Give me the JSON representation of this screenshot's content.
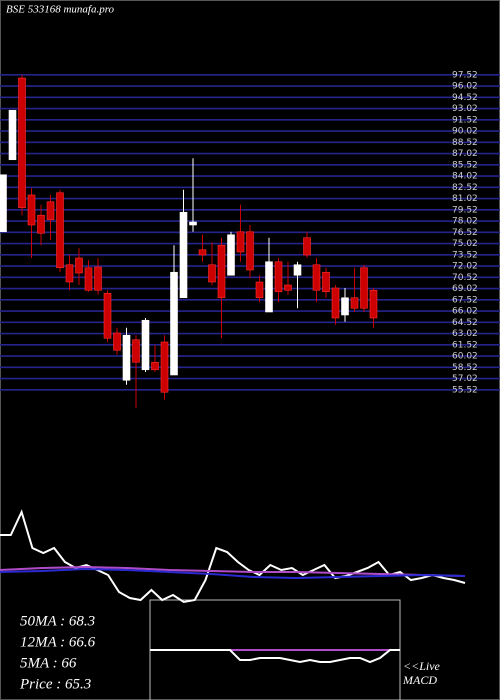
{
  "chart_data": [
    {
      "type": "candlestick",
      "title": "BSE 533168  munafa.pro",
      "ylim": [
        53.5,
        97.5
      ],
      "yticks": [
        97.52,
        96.02,
        94.52,
        93.02,
        91.52,
        90.02,
        88.52,
        87.02,
        85.52,
        84.02,
        82.52,
        81.02,
        79.52,
        78.02,
        76.52,
        75.02,
        73.52,
        72.02,
        70.52,
        69.02,
        67.52,
        66.02,
        64.52,
        63.02,
        61.52,
        60.02,
        58.52,
        57.02,
        55.52
      ],
      "grid": true,
      "up_color": "#ffffff",
      "down_color": "#cc0000",
      "grid_color": "#24248c",
      "ohlc": [
        [
          76.6,
          84.2,
          76.6,
          84.2
        ],
        [
          86.2,
          92.8,
          86.2,
          92.8
        ],
        [
          97.1,
          97.5,
          78.8,
          79.8
        ],
        [
          81.5,
          82.4,
          73.1,
          77.5
        ],
        [
          78.8,
          80.2,
          74.8,
          76.4
        ],
        [
          80.6,
          81.5,
          75.5,
          78.2
        ],
        [
          81.8,
          82.2,
          71.2,
          71.8
        ],
        [
          72.2,
          73.5,
          68.8,
          69.9
        ],
        [
          73.1,
          74.4,
          69.5,
          71.1
        ],
        [
          71.8,
          72.8,
          68.6,
          68.8
        ],
        [
          71.9,
          73.1,
          68.2,
          68.8
        ],
        [
          68.4,
          68.8,
          61.9,
          62.4
        ],
        [
          63.1,
          63.8,
          60.2,
          60.8
        ],
        [
          56.8,
          63.8,
          56.2,
          62.8
        ],
        [
          62.2,
          62.8,
          53.1,
          59.2
        ],
        [
          58.2,
          65.1,
          57.9,
          64.8
        ],
        [
          59.2,
          61.5,
          57.9,
          58.2
        ],
        [
          61.9,
          62.8,
          54.2,
          55.2
        ],
        [
          57.5,
          74.8,
          57.5,
          71.2
        ],
        [
          67.8,
          82.2,
          67.8,
          79.2
        ],
        [
          77.5,
          86.4,
          76.6,
          77.9
        ],
        [
          74.2,
          76.2,
          72.6,
          73.5
        ],
        [
          72.2,
          75.2,
          69.5,
          69.9
        ],
        [
          74.8,
          75.8,
          62.4,
          67.8
        ],
        [
          70.8,
          76.6,
          70.8,
          76.2
        ],
        [
          76.6,
          80.2,
          72.6,
          73.9
        ],
        [
          76.6,
          77.5,
          70.4,
          71.5
        ],
        [
          69.9,
          70.8,
          67.2,
          67.8
        ],
        [
          65.9,
          75.8,
          65.9,
          72.6
        ],
        [
          72.6,
          73.1,
          67.2,
          68.6
        ],
        [
          69.5,
          72.6,
          68.2,
          68.8
        ],
        [
          70.8,
          72.6,
          66.4,
          72.2
        ],
        [
          75.8,
          76.6,
          73.1,
          73.5
        ],
        [
          72.2,
          73.1,
          67.2,
          68.8
        ],
        [
          71.2,
          71.8,
          67.8,
          68.6
        ],
        [
          69.1,
          69.5,
          64.2,
          65.1
        ],
        [
          65.5,
          69.1,
          64.6,
          67.8
        ],
        [
          67.8,
          71.8,
          65.9,
          66.4
        ],
        [
          71.8,
          72.2,
          65.9,
          66.4
        ],
        [
          68.8,
          69.1,
          63.8,
          65.1
        ]
      ],
      "info": [
        "50MA : 68.3",
        "12MA : 66.6",
        "5MA : 66",
        "Price   : 65.3"
      ]
    },
    {
      "type": "line",
      "ylim": [
        0,
        100
      ],
      "series": [
        {
          "color": "#ffffff",
          "values": [
            70.8,
            70.8,
            90,
            60,
            55.8,
            60,
            48.3,
            43.3,
            45.8,
            41.7,
            37.5,
            23.3,
            18.3,
            16.7,
            25,
            16.7,
            20.8,
            15,
            16.7,
            33.3,
            60,
            56.7,
            48.3,
            41.7,
            37.5,
            45.8,
            41.7,
            43.3,
            37.5,
            41.7,
            45.8,
            35,
            36.7,
            40,
            43.3,
            48.3,
            37.5,
            40,
            33.3,
            35,
            37.5,
            35,
            33.3,
            30.8
          ]
        },
        {
          "color": "#b04cc8",
          "values": [
            41.7,
            43.3,
            44.2,
            43.3,
            41.7,
            40.8,
            40,
            40,
            39.2,
            38.3,
            37.5,
            36.7
          ]
        },
        {
          "color": "#2a2ad0",
          "values": [
            40,
            40.8,
            42.5,
            41.7,
            40,
            38.3,
            35.8,
            35,
            35.8,
            36.7,
            37.5,
            36.7
          ]
        }
      ]
    },
    {
      "type": "line",
      "ylim": [
        -10,
        10
      ],
      "annotation": [
        "<<Live",
        "MACD"
      ],
      "series": [
        {
          "color": "#b04cc8",
          "values": [
            0,
            0
          ]
        },
        {
          "color": "#ffffff",
          "values": [
            0,
            0,
            0,
            0,
            0,
            0,
            0,
            0,
            0,
            -2,
            -2,
            -1.6,
            -1.6,
            -1.6,
            -2,
            -2.4,
            -2,
            -2.4,
            -2.4,
            -2,
            -1.6,
            -1.6,
            -2.4,
            -1.6,
            0,
            0
          ]
        }
      ]
    }
  ]
}
